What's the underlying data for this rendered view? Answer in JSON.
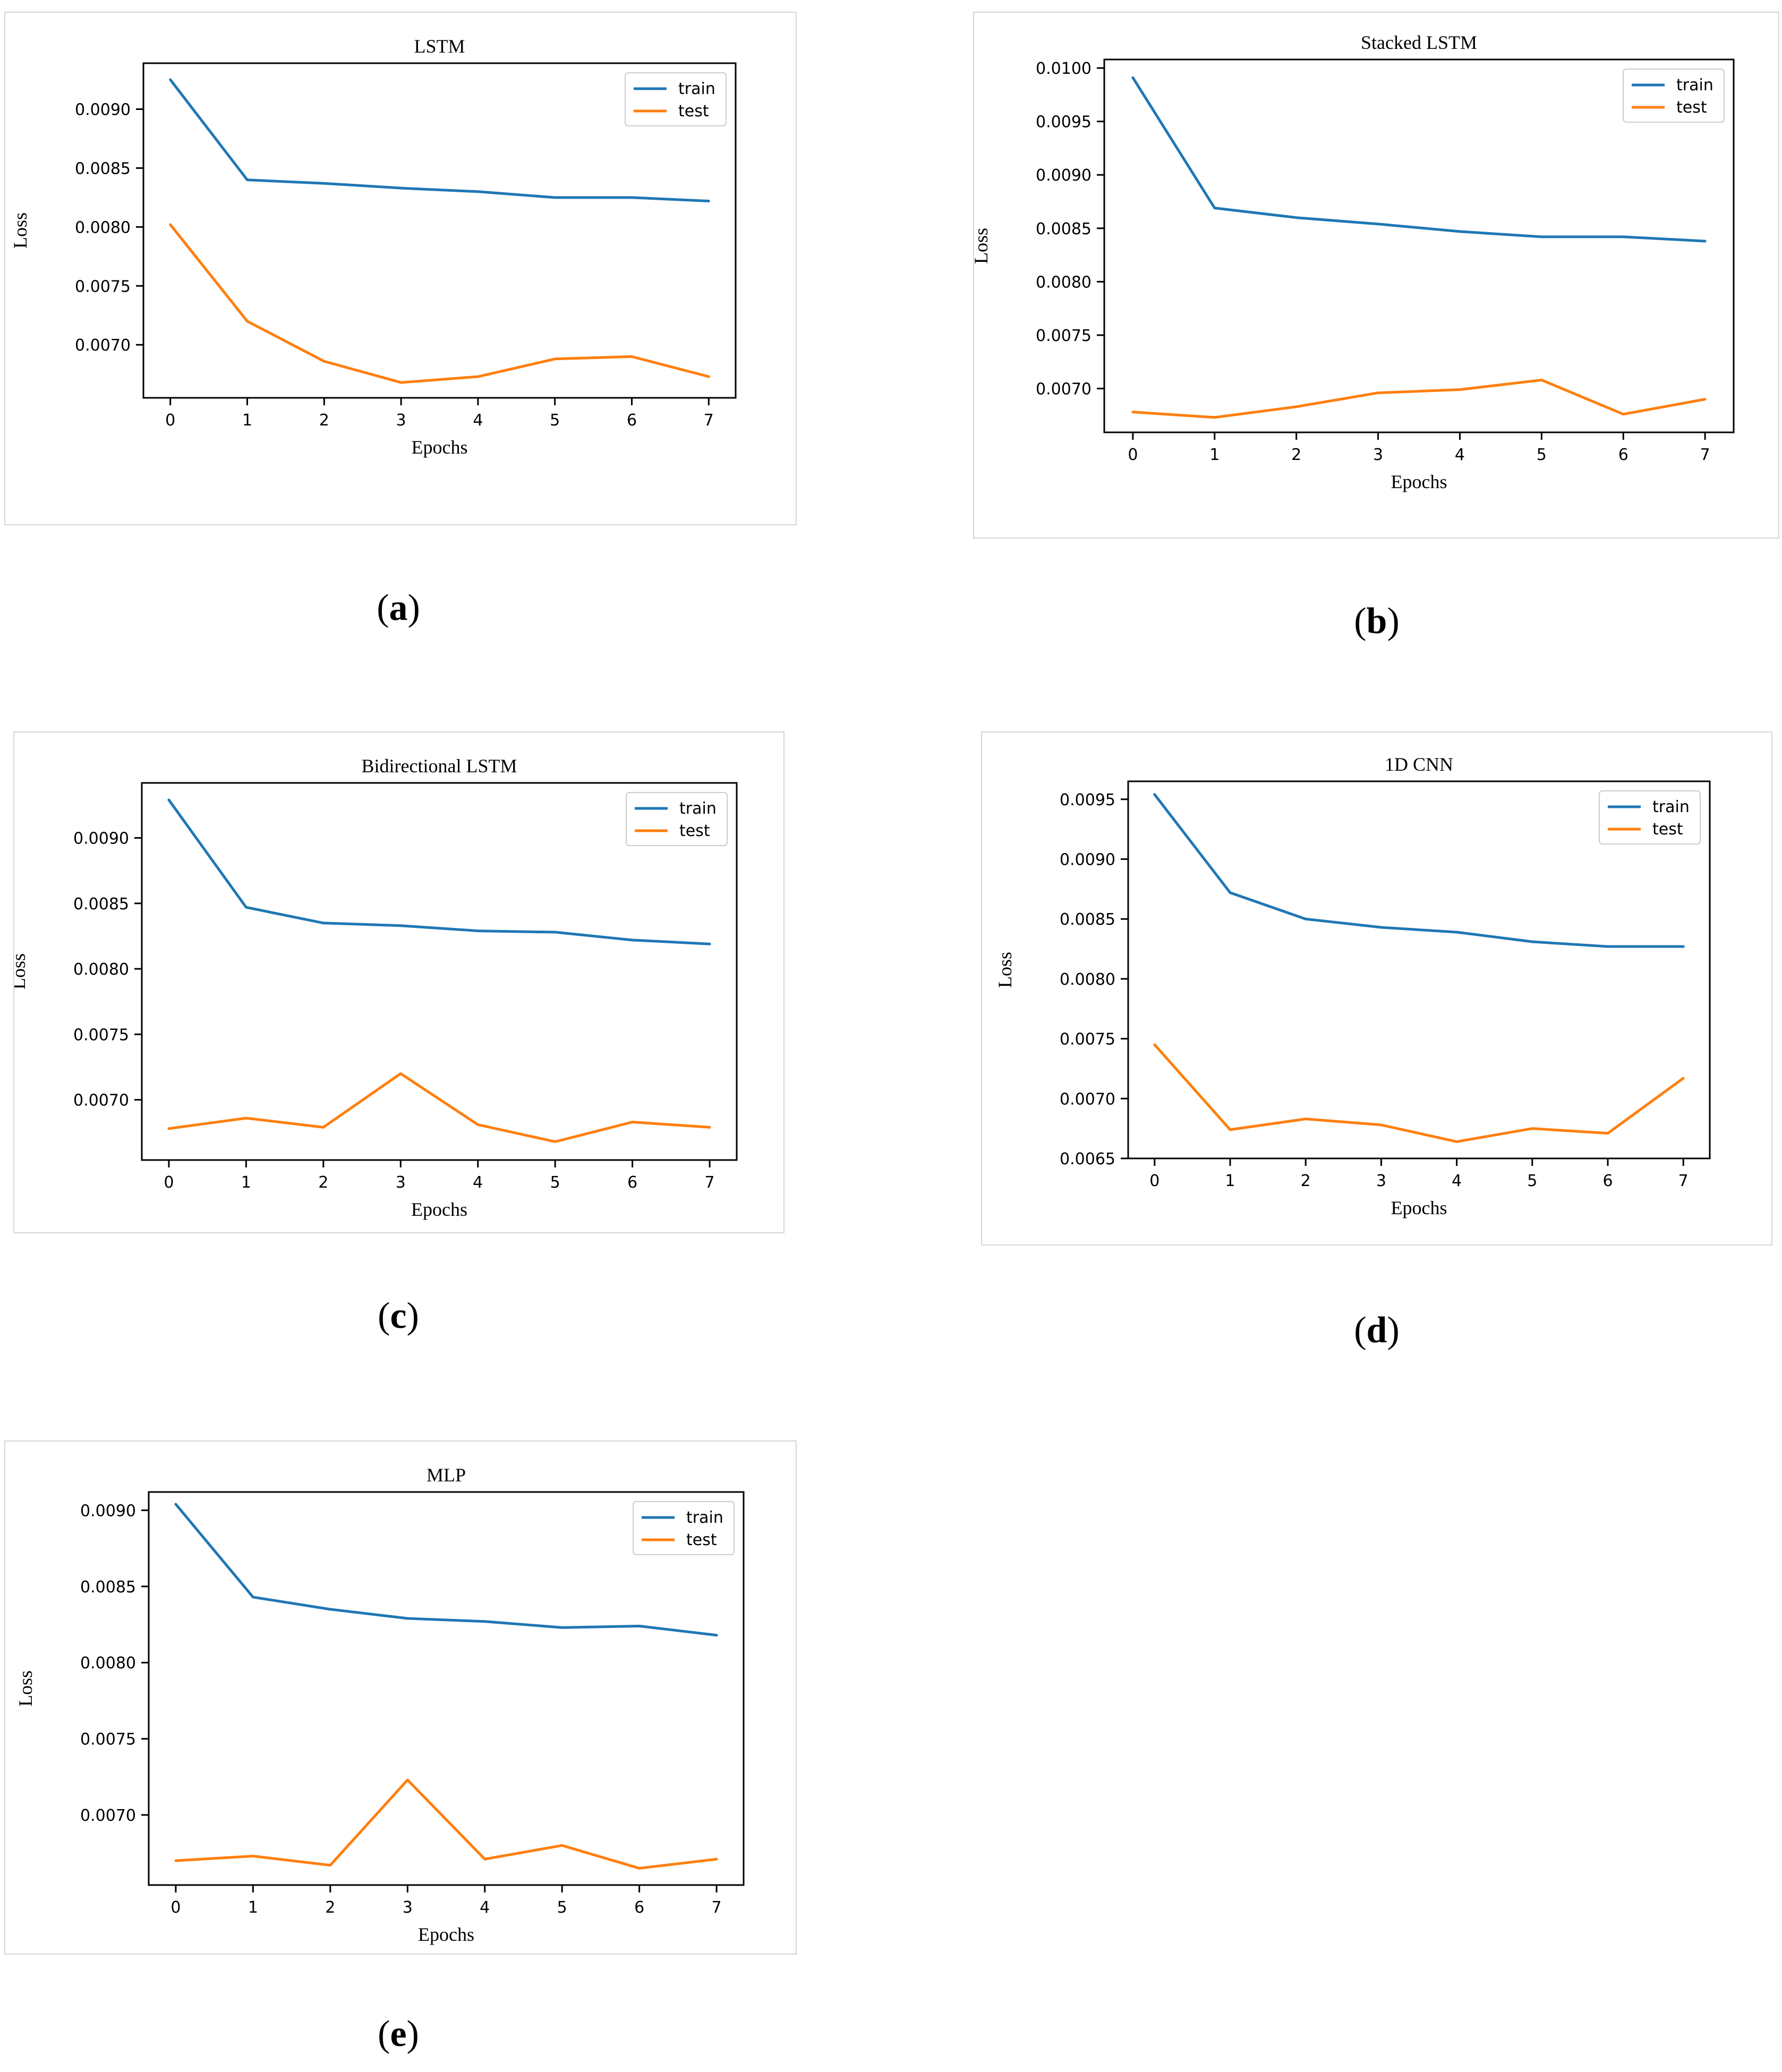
{
  "figure": {
    "captions": [
      "a",
      "b",
      "c",
      "d",
      "e"
    ]
  },
  "colors": {
    "train": "#1f77b4",
    "test": "#ff7f0e",
    "axis": "#000000",
    "legend_border": "#cccccc"
  },
  "chart_data": [
    {
      "id": "a",
      "type": "line",
      "title": "LSTM",
      "xlabel": "Epochs",
      "ylabel": "Loss",
      "x": [
        0,
        1,
        2,
        3,
        4,
        5,
        6,
        7
      ],
      "xlim": [
        -0.35,
        7.35
      ],
      "ylim": [
        0.00655,
        0.00939
      ],
      "yticks": [
        0.007,
        0.0075,
        0.008,
        0.0085,
        0.009
      ],
      "ytick_labels": [
        "0.0070",
        "0.0075",
        "0.0080",
        "0.0085",
        "0.0090"
      ],
      "xtick_labels": [
        "0",
        "1",
        "2",
        "3",
        "4",
        "5",
        "6",
        "7"
      ],
      "legend": "top-right",
      "series": [
        {
          "name": "train",
          "values": [
            0.00925,
            0.0084,
            0.00837,
            0.00833,
            0.0083,
            0.00825,
            0.00825,
            0.00822
          ]
        },
        {
          "name": "test",
          "values": [
            0.00802,
            0.0072,
            0.00686,
            0.00668,
            0.00673,
            0.00688,
            0.0069,
            0.00673
          ]
        }
      ]
    },
    {
      "id": "b",
      "type": "line",
      "title": "Stacked LSTM",
      "xlabel": "Epochs",
      "ylabel": "Loss",
      "x": [
        0,
        1,
        2,
        3,
        4,
        5,
        6,
        7
      ],
      "xlim": [
        -0.35,
        7.35
      ],
      "ylim": [
        0.00659,
        0.01008
      ],
      "yticks": [
        0.007,
        0.0075,
        0.008,
        0.0085,
        0.009,
        0.0095,
        0.01
      ],
      "ytick_labels": [
        "0.0070",
        "0.0075",
        "0.0080",
        "0.0085",
        "0.0090",
        "0.0095",
        "0.0100"
      ],
      "xtick_labels": [
        "0",
        "1",
        "2",
        "3",
        "4",
        "5",
        "6",
        "7"
      ],
      "legend": "top-right",
      "series": [
        {
          "name": "train",
          "values": [
            0.00991,
            0.00869,
            0.0086,
            0.00854,
            0.00847,
            0.00842,
            0.00842,
            0.00838
          ]
        },
        {
          "name": "test",
          "values": [
            0.00678,
            0.00673,
            0.00683,
            0.00696,
            0.00699,
            0.00708,
            0.00676,
            0.0069
          ]
        }
      ]
    },
    {
      "id": "c",
      "type": "line",
      "title": "Bidirectional LSTM",
      "xlabel": "Epochs",
      "ylabel": "Loss",
      "x": [
        0,
        1,
        2,
        3,
        4,
        5,
        6,
        7
      ],
      "xlim": [
        -0.35,
        7.35
      ],
      "ylim": [
        0.00654,
        0.00942
      ],
      "yticks": [
        0.007,
        0.0075,
        0.008,
        0.0085,
        0.009
      ],
      "ytick_labels": [
        "0.0070",
        "0.0075",
        "0.0080",
        "0.0085",
        "0.0090"
      ],
      "xtick_labels": [
        "0",
        "1",
        "2",
        "3",
        "4",
        "5",
        "6",
        "7"
      ],
      "legend": "top-right",
      "series": [
        {
          "name": "train",
          "values": [
            0.00929,
            0.00847,
            0.00835,
            0.00833,
            0.00829,
            0.00828,
            0.00822,
            0.00819
          ]
        },
        {
          "name": "test",
          "values": [
            0.00678,
            0.00686,
            0.00679,
            0.0072,
            0.00681,
            0.00668,
            0.00683,
            0.00679
          ]
        }
      ]
    },
    {
      "id": "d",
      "type": "line",
      "title": "1D CNN",
      "xlabel": "Epochs",
      "ylabel": "Loss",
      "x": [
        0,
        1,
        2,
        3,
        4,
        5,
        6,
        7
      ],
      "xlim": [
        -0.35,
        7.35
      ],
      "ylim": [
        0.0065,
        0.00965
      ],
      "yticks": [
        0.0065,
        0.007,
        0.0075,
        0.008,
        0.0085,
        0.009,
        0.0095
      ],
      "ytick_labels": [
        "0.0065",
        "0.0070",
        "0.0075",
        "0.0080",
        "0.0085",
        "0.0090",
        "0.0095"
      ],
      "xtick_labels": [
        "0",
        "1",
        "2",
        "3",
        "4",
        "5",
        "6",
        "7"
      ],
      "legend": "top-right",
      "series": [
        {
          "name": "train",
          "values": [
            0.00954,
            0.00872,
            0.0085,
            0.00843,
            0.00839,
            0.00831,
            0.00827,
            0.00827
          ]
        },
        {
          "name": "test",
          "values": [
            0.00745,
            0.00674,
            0.00683,
            0.00678,
            0.00664,
            0.00675,
            0.00671,
            0.00717
          ]
        }
      ]
    },
    {
      "id": "e",
      "type": "line",
      "title": "MLP",
      "xlabel": "Epochs",
      "ylabel": "Loss",
      "x": [
        0,
        1,
        2,
        3,
        4,
        5,
        6,
        7
      ],
      "xlim": [
        -0.35,
        7.35
      ],
      "ylim": [
        0.00654,
        0.00912
      ],
      "yticks": [
        0.007,
        0.0075,
        0.008,
        0.0085,
        0.009
      ],
      "ytick_labels": [
        "0.0070",
        "0.0075",
        "0.0080",
        "0.0085",
        "0.0090"
      ],
      "xtick_labels": [
        "0",
        "1",
        "2",
        "3",
        "4",
        "5",
        "6",
        "7"
      ],
      "legend": "top-right",
      "series": [
        {
          "name": "train",
          "values": [
            0.00904,
            0.00843,
            0.00835,
            0.00829,
            0.00827,
            0.00823,
            0.00824,
            0.00818
          ]
        },
        {
          "name": "test",
          "values": [
            0.0067,
            0.00673,
            0.00667,
            0.00723,
            0.00671,
            0.0068,
            0.00665,
            0.00671
          ]
        }
      ]
    }
  ]
}
